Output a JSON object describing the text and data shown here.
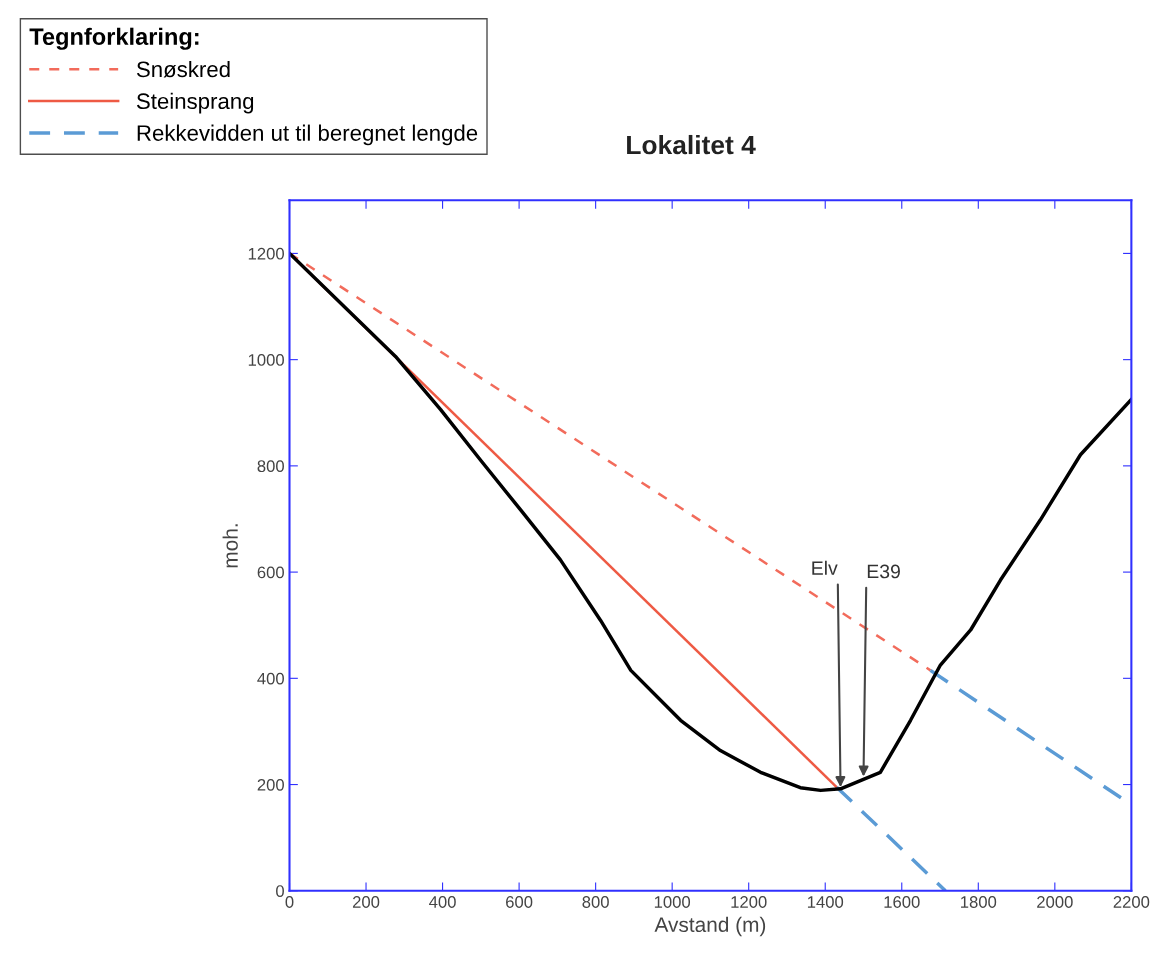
{
  "chart_data": {
    "type": "line",
    "title": "Lokalitet 4",
    "xlabel": "Avstand (m)",
    "ylabel": "moh.",
    "legend_title": "Tegnforklaring:",
    "legend": "top left",
    "grid": false,
    "marker": "none",
    "xlim": [
      0,
      2200
    ],
    "ylim": [
      0,
      1300
    ],
    "xticks": [
      0,
      200,
      400,
      600,
      800,
      1000,
      1200,
      1400,
      1600,
      1800,
      2000,
      2200
    ],
    "yticks": [
      0,
      200,
      400,
      600,
      800,
      1000,
      1200
    ],
    "series": [
      {
        "name": "Snøskred",
        "color": "#f26b5b",
        "line_style": "dashed",
        "x": [
          0,
          1675
        ],
        "values": [
          1200,
          415
        ]
      },
      {
        "name": "Steinsprang",
        "color": "#ee5a44",
        "line_style": "solid",
        "x": [
          0,
          1430
        ],
        "values": [
          1200,
          195
        ]
      },
      {
        "name": "Rekkevidden ut til beregnet lengde",
        "color": "#5b9bd5",
        "line_style": "dashed",
        "x": [
          1675,
          2200
        ],
        "values": [
          415,
          162
        ]
      },
      {
        "color": "#5b9bd5",
        "line_style": "dashed",
        "x": [
          1430,
          1714
        ],
        "values": [
          195,
          0
        ]
      },
      {
        "color": "#000000",
        "line_style": "solid",
        "x": [
          0,
          277,
          395,
          499,
          604,
          708,
          813,
          892,
          1022,
          1126,
          1231,
          1335,
          1388,
          1440,
          1544,
          1623,
          1701,
          1780,
          1858,
          1962,
          2067,
          2200
        ],
        "values": [
          1200,
          1006,
          906,
          811,
          717,
          623,
          509,
          415,
          321,
          264,
          223,
          194,
          189,
          192,
          223,
          321,
          425,
          491,
          585,
          698,
          821,
          925
        ]
      }
    ],
    "annotations": [
      {
        "text": "Elv",
        "x": 1440,
        "y": 195
      },
      {
        "text": "E39",
        "x": 1500,
        "y": 215
      }
    ]
  }
}
